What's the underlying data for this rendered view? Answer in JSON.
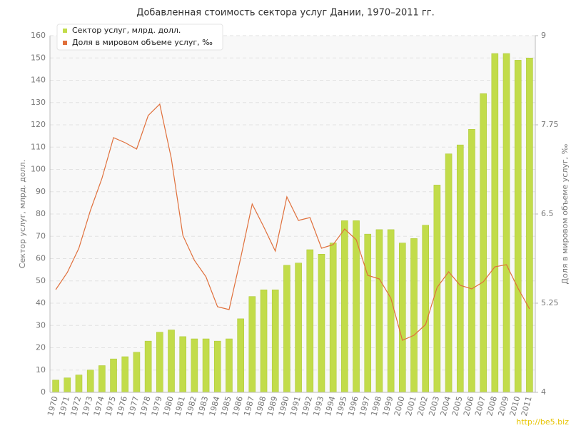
{
  "chart_data": {
    "type": "bar",
    "title": "Добавленная стоимость сектора услуг Дании, 1970–2011 гг.",
    "ylabel": "Сектор услуг, млрд. долл.",
    "y2label": "Доля в мировом объеме услуг, ‰",
    "watermark": "http://be5.biz",
    "categories": [
      "1970",
      "1971",
      "1972",
      "1973",
      "1974",
      "1975",
      "1976",
      "1977",
      "1978",
      "1979",
      "1980",
      "1981",
      "1982",
      "1983",
      "1984",
      "1985",
      "1986",
      "1987",
      "1988",
      "1989",
      "1990",
      "1991",
      "1992",
      "1993",
      "1994",
      "1995",
      "1996",
      "1997",
      "1998",
      "1999",
      "2000",
      "2001",
      "2002",
      "2003",
      "2004",
      "2005",
      "2006",
      "2007",
      "2008",
      "2009",
      "2010",
      "2011"
    ],
    "series": [
      {
        "name": "Сектор услуг, млрд. долл.",
        "type": "bar",
        "color": "#c2dc4a",
        "values": [
          5.5,
          6.5,
          7.8,
          10,
          12,
          15,
          16,
          18,
          23,
          27,
          28,
          25,
          24,
          24,
          23,
          24,
          33,
          43,
          46,
          46,
          57,
          58,
          64,
          62,
          67,
          77,
          77,
          71,
          73,
          73,
          67,
          69,
          75,
          93,
          107,
          111,
          118,
          134,
          152,
          152,
          149,
          150
        ]
      },
      {
        "name": "Доля в мировом объеме услуг, ‰",
        "type": "line",
        "color": "#e0703c",
        "axis": "y2",
        "values": [
          5.44,
          5.68,
          6.02,
          6.55,
          7.0,
          7.57,
          7.5,
          7.41,
          7.88,
          8.04,
          7.28,
          6.2,
          5.85,
          5.62,
          5.2,
          5.16,
          5.88,
          6.64,
          6.32,
          5.98,
          6.74,
          6.41,
          6.45,
          6.02,
          6.07,
          6.29,
          6.14,
          5.64,
          5.59,
          5.32,
          4.73,
          4.8,
          4.95,
          5.47,
          5.69,
          5.5,
          5.45,
          5.55,
          5.76,
          5.79,
          5.46,
          5.17
        ]
      }
    ],
    "ylim": [
      0,
      160
    ],
    "yticks": [
      0,
      10,
      20,
      30,
      40,
      50,
      60,
      70,
      80,
      90,
      100,
      110,
      120,
      130,
      140,
      150,
      160
    ],
    "y2lim": [
      4,
      9
    ],
    "y2ticks": [
      4,
      5.25,
      6.5,
      7.75,
      9
    ],
    "grid": true,
    "legend": "top-left"
  }
}
